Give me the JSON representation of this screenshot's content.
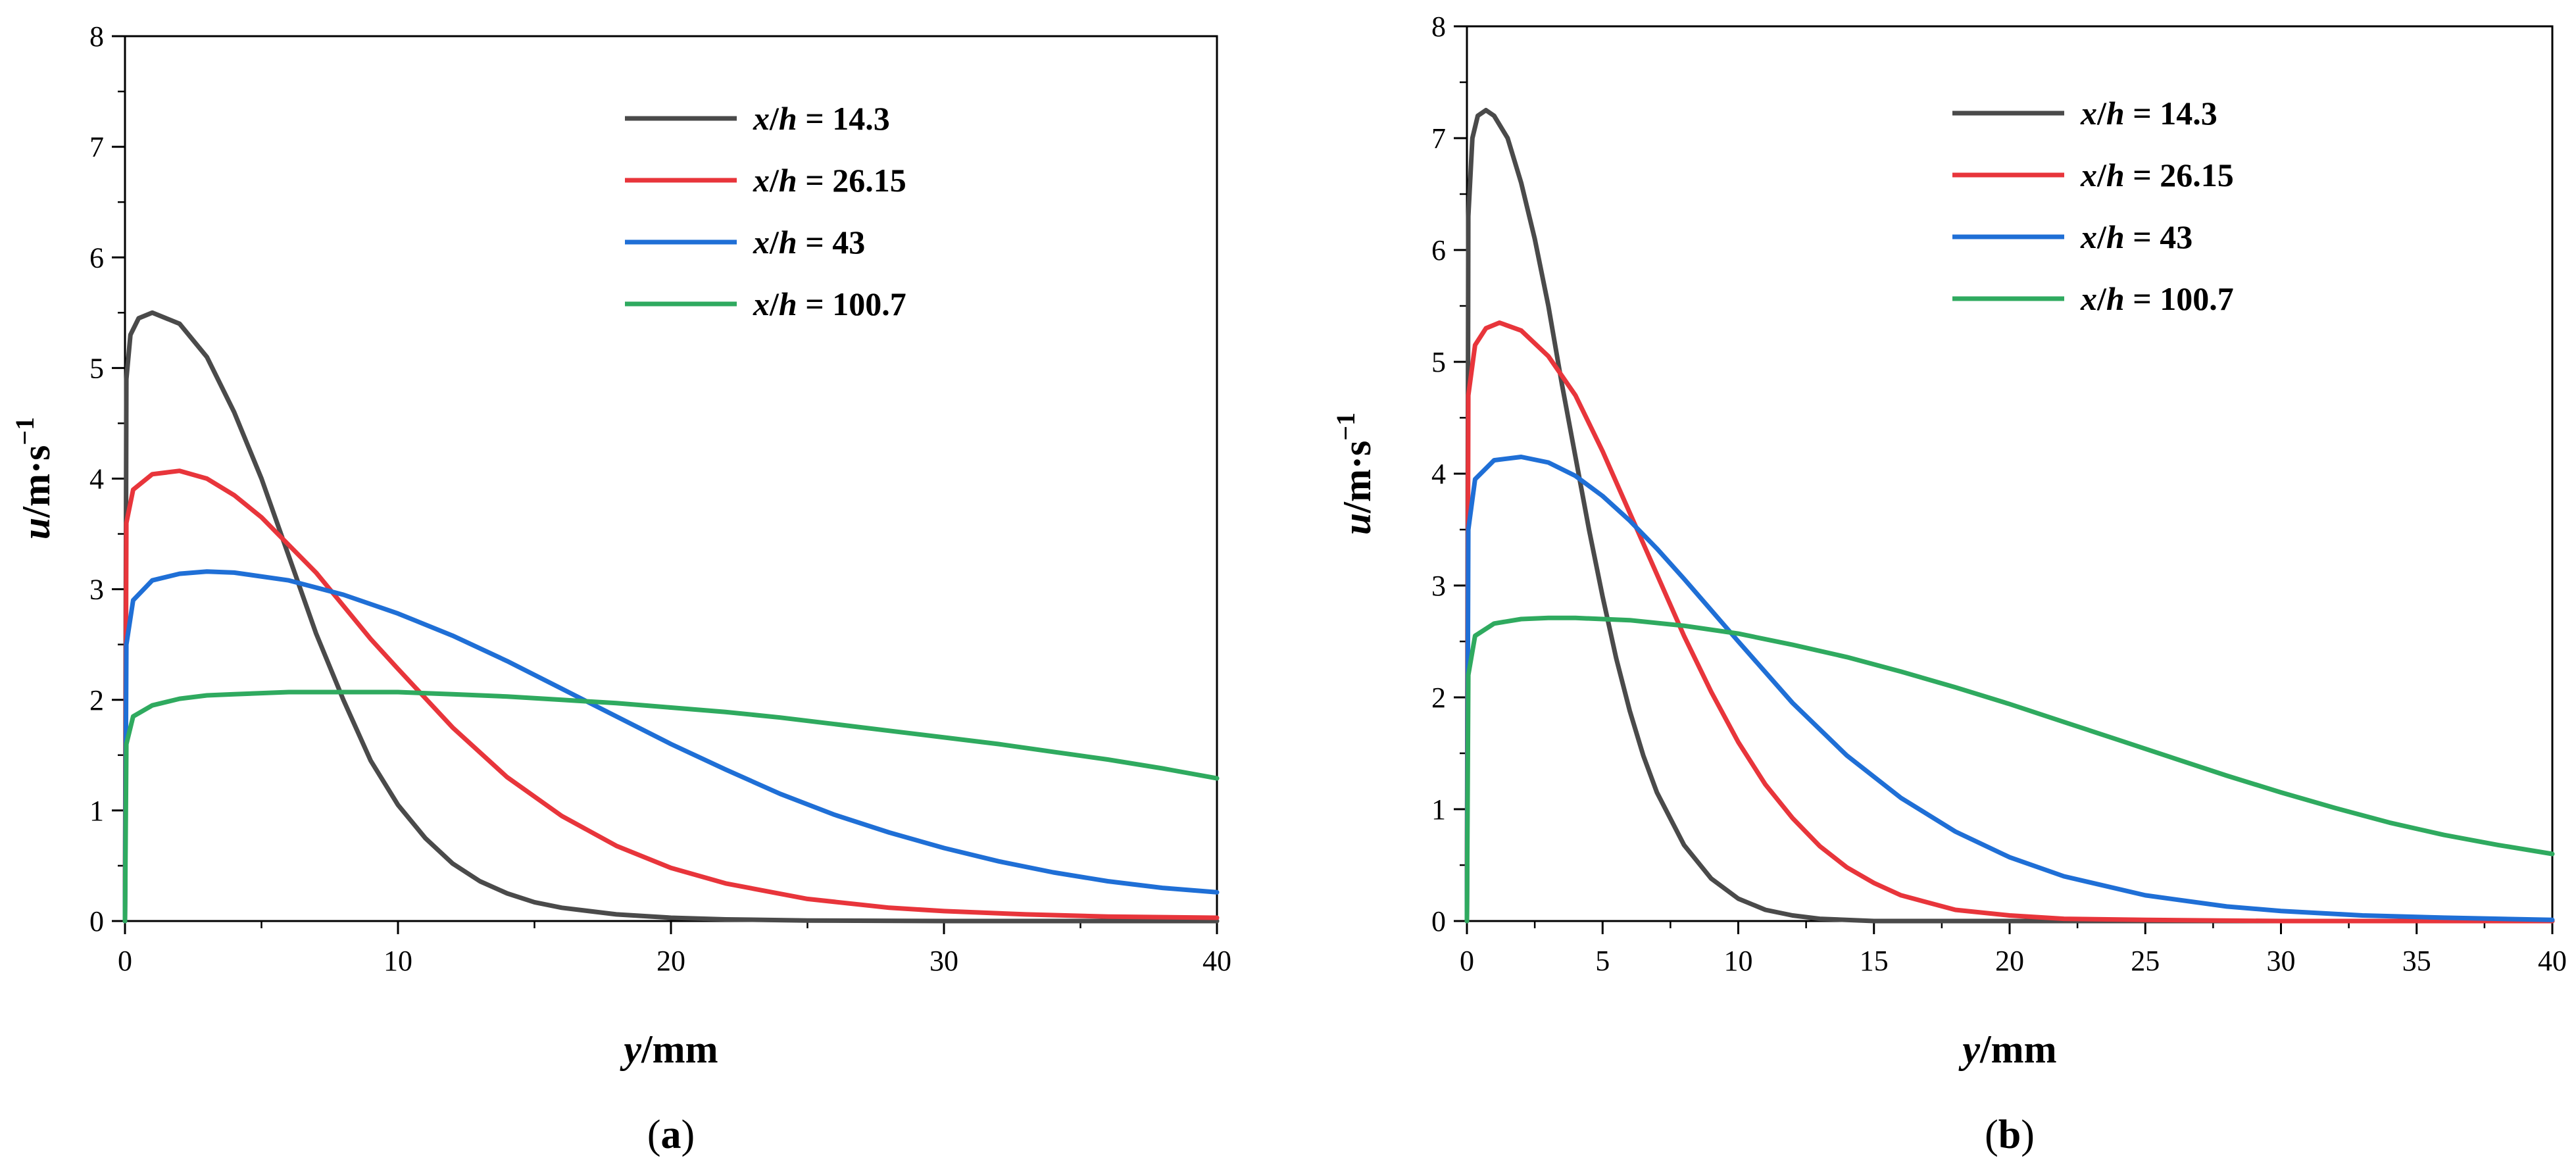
{
  "chart_data": [
    {
      "type": "line",
      "panel": "a",
      "caption": "(a)",
      "xlabel": {
        "var": "y",
        "unit": "/mm"
      },
      "ylabel": {
        "var": "u",
        "unit": "/m·s",
        "exp": "−1"
      },
      "xlim": [
        0,
        40
      ],
      "ylim": [
        0,
        8
      ],
      "xticks": [
        0,
        10,
        20,
        30,
        40
      ],
      "yticks": [
        0,
        1,
        2,
        3,
        4,
        5,
        6,
        7,
        8
      ],
      "legend_position": "top-right",
      "series": [
        {
          "name": "x/h = 14.3",
          "var": "x/h",
          "value": "14.3",
          "color": "#4a4a4a",
          "x": [
            0,
            0.05,
            0.2,
            0.5,
            1,
            2,
            3,
            4,
            5,
            6,
            7,
            8,
            9,
            10,
            11,
            12,
            13,
            14,
            15,
            16,
            18,
            20,
            22,
            25,
            30,
            35,
            40
          ],
          "y": [
            0,
            4.9,
            5.3,
            5.45,
            5.5,
            5.4,
            5.1,
            4.6,
            4.0,
            3.3,
            2.6,
            2.0,
            1.45,
            1.05,
            0.75,
            0.52,
            0.36,
            0.25,
            0.17,
            0.12,
            0.06,
            0.03,
            0.015,
            0.005,
            0.0,
            0.0,
            0.0
          ]
        },
        {
          "name": "x/h = 26.15",
          "var": "x/h",
          "value": "26.15",
          "color": "#e8353b",
          "x": [
            0,
            0.05,
            0.3,
            1,
            2,
            3,
            4,
            5,
            6,
            7,
            8,
            9,
            10,
            12,
            14,
            16,
            18,
            20,
            22,
            25,
            28,
            30,
            33,
            36,
            40
          ],
          "y": [
            0,
            3.6,
            3.9,
            4.04,
            4.07,
            4.0,
            3.85,
            3.65,
            3.4,
            3.15,
            2.85,
            2.55,
            2.28,
            1.75,
            1.3,
            0.95,
            0.68,
            0.48,
            0.34,
            0.2,
            0.12,
            0.09,
            0.06,
            0.04,
            0.03
          ]
        },
        {
          "name": "x/h = 43",
          "var": "x/h",
          "value": "43",
          "color": "#1f6fd6",
          "x": [
            0,
            0.05,
            0.3,
            1,
            2,
            3,
            4,
            6,
            8,
            10,
            12,
            14,
            16,
            18,
            20,
            22,
            24,
            26,
            28,
            30,
            32,
            34,
            36,
            38,
            40
          ],
          "y": [
            0,
            2.5,
            2.9,
            3.08,
            3.14,
            3.16,
            3.15,
            3.08,
            2.95,
            2.78,
            2.58,
            2.35,
            2.1,
            1.85,
            1.6,
            1.37,
            1.15,
            0.96,
            0.8,
            0.66,
            0.54,
            0.44,
            0.36,
            0.3,
            0.26
          ]
        },
        {
          "name": "x/h = 100.7",
          "var": "x/h",
          "value": "100.7",
          "color": "#2faa5f",
          "x": [
            0,
            0.05,
            0.3,
            1,
            2,
            3,
            4,
            6,
            8,
            10,
            12,
            14,
            16,
            18,
            20,
            22,
            24,
            26,
            28,
            30,
            32,
            34,
            36,
            38,
            40
          ],
          "y": [
            0,
            1.6,
            1.85,
            1.95,
            2.01,
            2.04,
            2.05,
            2.07,
            2.07,
            2.07,
            2.05,
            2.03,
            2.0,
            1.97,
            1.93,
            1.89,
            1.84,
            1.78,
            1.72,
            1.66,
            1.6,
            1.53,
            1.46,
            1.38,
            1.29
          ]
        }
      ]
    },
    {
      "type": "line",
      "panel": "b",
      "caption": "(b)",
      "xlabel": {
        "var": "y",
        "unit": "/mm"
      },
      "ylabel": {
        "var": "u",
        "unit": "/m·s",
        "exp": "−1"
      },
      "xlim": [
        0,
        40
      ],
      "ylim": [
        0,
        8
      ],
      "xticks": [
        0,
        5,
        10,
        15,
        20,
        25,
        30,
        35,
        40
      ],
      "yticks": [
        0,
        1,
        2,
        3,
        4,
        5,
        6,
        7,
        8
      ],
      "legend_position": "top-right",
      "series": [
        {
          "name": "x/h = 14.3",
          "var": "x/h",
          "value": "14.3",
          "color": "#4a4a4a",
          "x": [
            0,
            0.05,
            0.2,
            0.4,
            0.7,
            1,
            1.5,
            2,
            2.5,
            3,
            3.5,
            4,
            4.5,
            5,
            5.5,
            6,
            6.5,
            7,
            8,
            9,
            10,
            11,
            12,
            13,
            15,
            20,
            40
          ],
          "y": [
            0,
            6.3,
            7.0,
            7.2,
            7.25,
            7.2,
            7.0,
            6.6,
            6.1,
            5.5,
            4.8,
            4.15,
            3.5,
            2.9,
            2.35,
            1.88,
            1.48,
            1.15,
            0.68,
            0.38,
            0.2,
            0.1,
            0.05,
            0.02,
            0.0,
            0.0,
            0.0
          ]
        },
        {
          "name": "x/h = 26.15",
          "var": "x/h",
          "value": "26.15",
          "color": "#e8353b",
          "x": [
            0,
            0.05,
            0.3,
            0.7,
            1.2,
            2,
            3,
            4,
            5,
            6,
            7,
            8,
            9,
            10,
            11,
            12,
            13,
            14,
            15,
            16,
            18,
            20,
            22,
            25,
            30,
            40
          ],
          "y": [
            0,
            4.7,
            5.15,
            5.3,
            5.35,
            5.28,
            5.05,
            4.7,
            4.2,
            3.65,
            3.1,
            2.55,
            2.05,
            1.6,
            1.22,
            0.92,
            0.67,
            0.48,
            0.34,
            0.23,
            0.1,
            0.05,
            0.02,
            0.01,
            0.0,
            0.0
          ]
        },
        {
          "name": "x/h = 43",
          "var": "x/h",
          "value": "43",
          "color": "#1f6fd6",
          "x": [
            0,
            0.05,
            0.3,
            1,
            2,
            3,
            4,
            5,
            6,
            7,
            8,
            9,
            10,
            12,
            14,
            16,
            18,
            20,
            22,
            25,
            28,
            30,
            33,
            36,
            40
          ],
          "y": [
            0,
            3.5,
            3.95,
            4.12,
            4.15,
            4.1,
            3.98,
            3.8,
            3.58,
            3.33,
            3.06,
            2.78,
            2.5,
            1.95,
            1.48,
            1.1,
            0.8,
            0.57,
            0.4,
            0.23,
            0.13,
            0.09,
            0.05,
            0.03,
            0.01
          ]
        },
        {
          "name": "x/h = 100.7",
          "var": "x/h",
          "value": "100.7",
          "color": "#2faa5f",
          "x": [
            0,
            0.05,
            0.3,
            1,
            2,
            3,
            4,
            5,
            6,
            8,
            10,
            12,
            14,
            16,
            18,
            20,
            22,
            24,
            26,
            28,
            30,
            32,
            34,
            36,
            38,
            40
          ],
          "y": [
            0,
            2.2,
            2.55,
            2.66,
            2.7,
            2.71,
            2.71,
            2.7,
            2.69,
            2.64,
            2.57,
            2.47,
            2.36,
            2.23,
            2.09,
            1.94,
            1.78,
            1.62,
            1.46,
            1.3,
            1.15,
            1.01,
            0.88,
            0.77,
            0.68,
            0.6
          ]
        }
      ]
    }
  ]
}
